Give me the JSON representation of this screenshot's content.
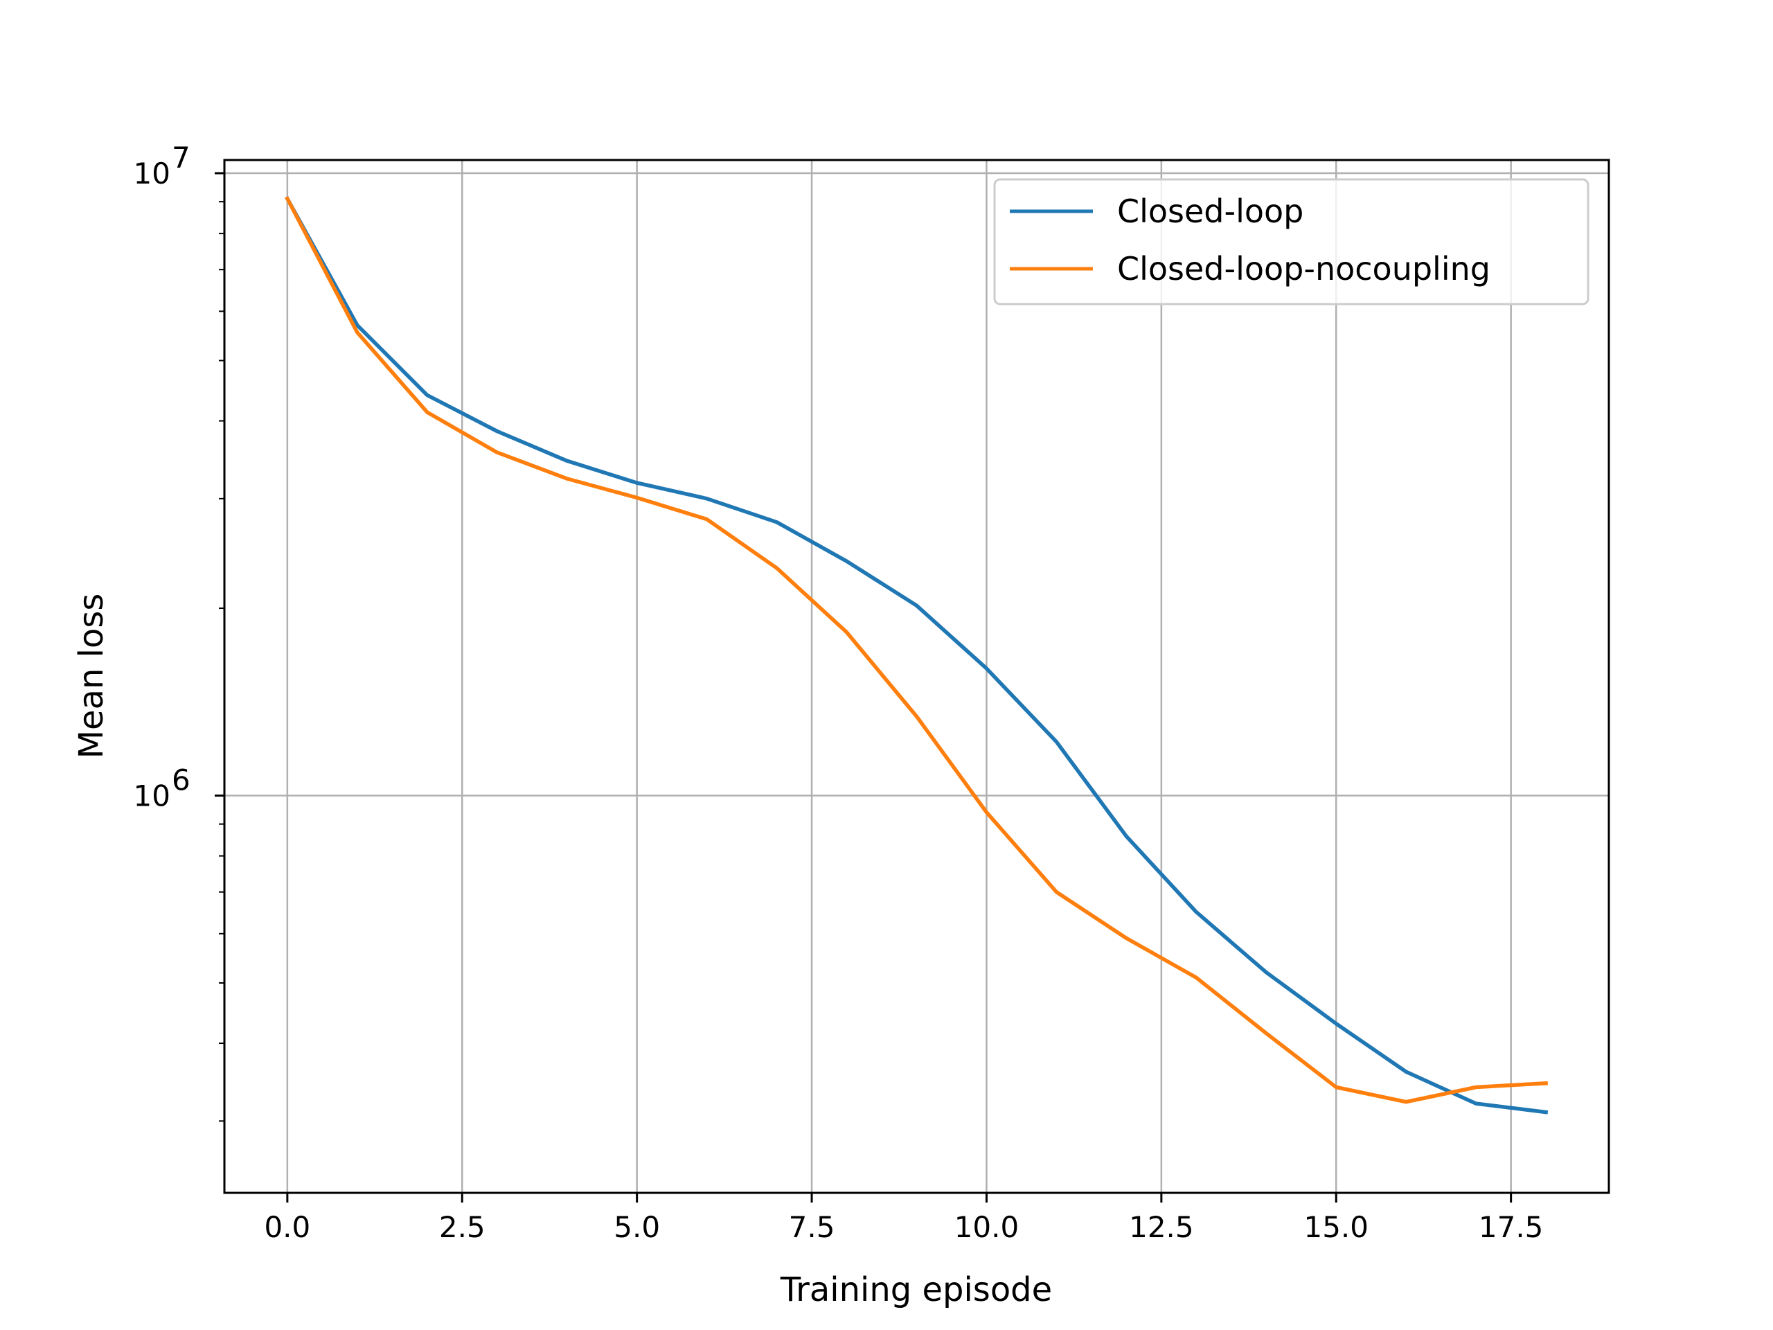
{
  "chart_data": {
    "type": "line",
    "title": "",
    "xlabel": "Training episode",
    "ylabel": "Mean loss",
    "yscale": "log",
    "grid": true,
    "legend_position": "top-right",
    "xlim": [
      -0.9,
      18.9
    ],
    "ylim": [
      230000,
      10500000
    ],
    "x_ticks": [
      {
        "value": 0,
        "label": "0.0"
      },
      {
        "value": 2.5,
        "label": "2.5"
      },
      {
        "value": 5,
        "label": "5.0"
      },
      {
        "value": 7.5,
        "label": "7.5"
      },
      {
        "value": 10,
        "label": "10.0"
      },
      {
        "value": 12.5,
        "label": "12.5"
      },
      {
        "value": 15,
        "label": "15.0"
      },
      {
        "value": 17.5,
        "label": "17.5"
      }
    ],
    "y_ticks": [
      {
        "value": 10000000,
        "base": "10",
        "exp": "7"
      },
      {
        "value": 1000000,
        "base": "10",
        "exp": "6"
      }
    ],
    "y_minor_ticks": [
      300000,
      400000,
      500000,
      600000,
      700000,
      800000,
      900000,
      2000000,
      3000000,
      4000000,
      5000000,
      6000000,
      7000000,
      8000000,
      9000000
    ],
    "x": [
      0,
      1,
      2,
      3,
      4,
      5,
      6,
      7,
      8,
      9,
      10,
      11,
      12,
      13,
      14,
      15,
      16,
      17,
      18
    ],
    "series": [
      {
        "name": "Closed-loop",
        "color": "#1f77b4",
        "values": [
          9100000,
          5700000,
          4400000,
          3850000,
          3450000,
          3180000,
          3000000,
          2750000,
          2380000,
          2020000,
          1600000,
          1220000,
          860000,
          650000,
          520000,
          430000,
          360000,
          320000,
          310000
        ]
      },
      {
        "name": "Closed-loop-nocoupling",
        "color": "#ff7f0e",
        "values": [
          9100000,
          5550000,
          4130000,
          3560000,
          3230000,
          3010000,
          2780000,
          2320000,
          1830000,
          1340000,
          940000,
          700000,
          590000,
          510000,
          415000,
          340000,
          322000,
          340000,
          345000
        ]
      }
    ]
  }
}
